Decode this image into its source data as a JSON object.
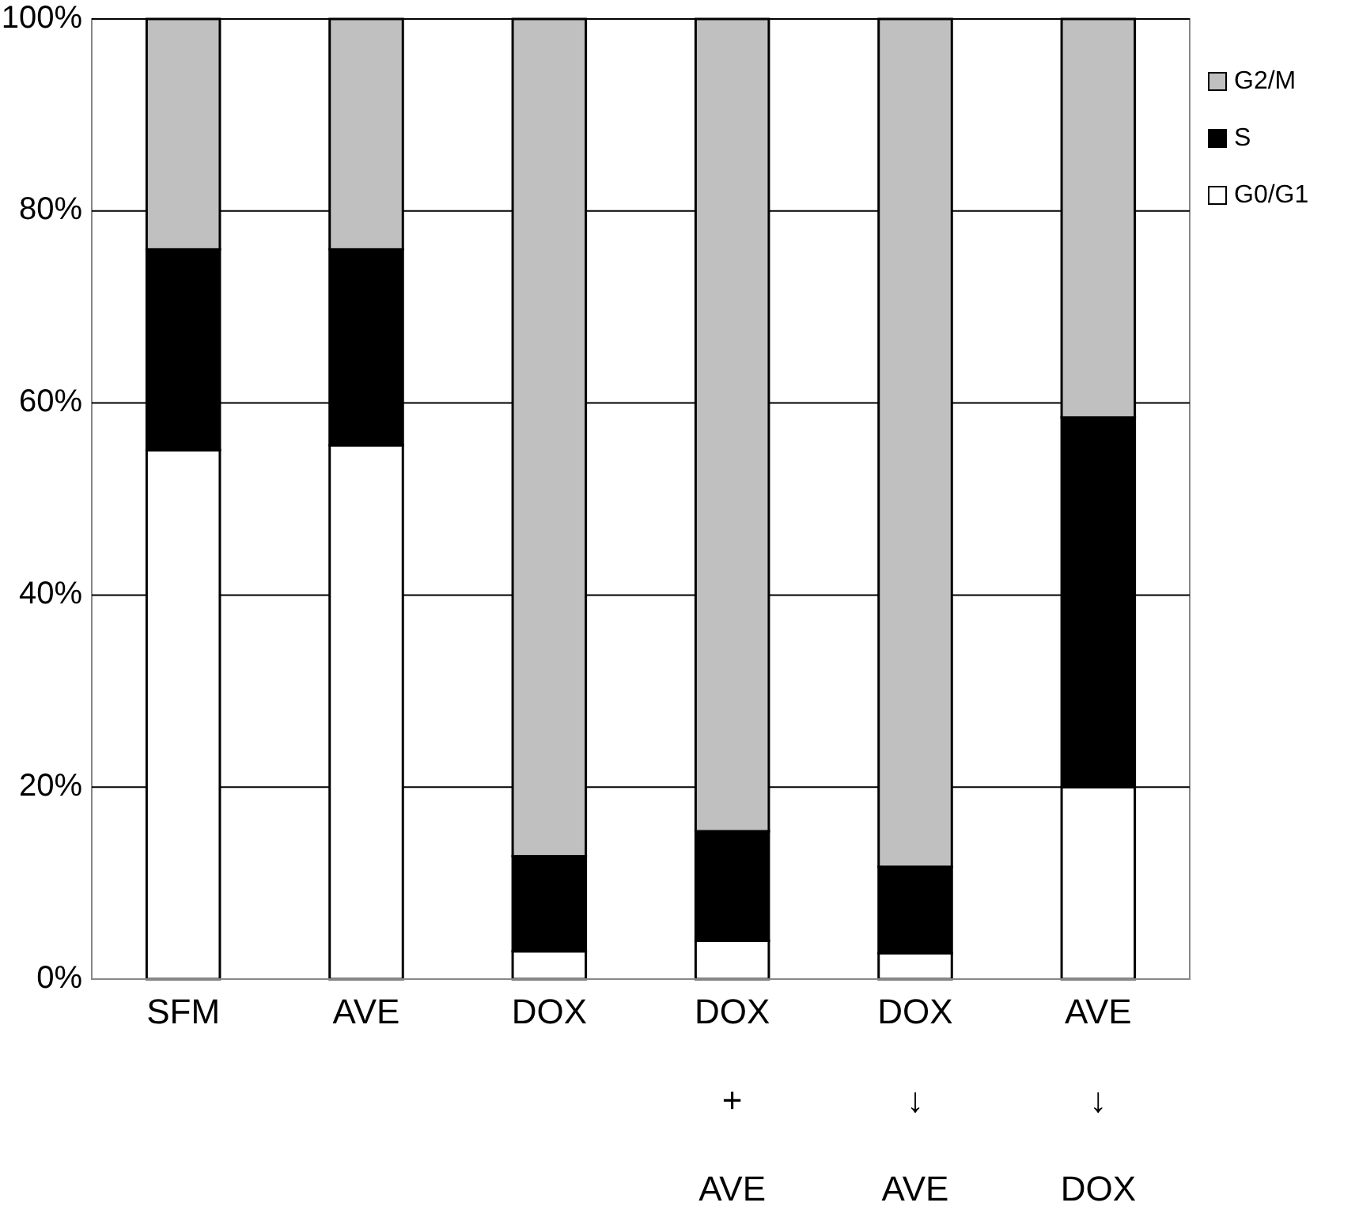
{
  "chart_data": {
    "type": "bar",
    "stacked": true,
    "categories": [
      "SFM",
      "AVE",
      "DOX",
      "DOX\n+\nAVE",
      "DOX\n↓\nAVE",
      "AVE\n↓\nDOX"
    ],
    "series": [
      {
        "name": "G0/G1",
        "color": "#ffffff",
        "values": [
          55.1,
          55.6,
          2.9,
          4.0,
          2.7,
          20.0
        ]
      },
      {
        "name": "S",
        "color": "#000000",
        "values": [
          20.9,
          20.4,
          9.9,
          11.4,
          9.0,
          38.5
        ]
      },
      {
        "name": "G2/M",
        "color": "#c0c0c0",
        "values": [
          24.0,
          24.0,
          87.2,
          84.6,
          88.3,
          41.5
        ]
      }
    ],
    "ylim": [
      0,
      100
    ],
    "yticks": [
      {
        "value": 0,
        "label": "0%"
      },
      {
        "value": 20,
        "label": "20%"
      },
      {
        "value": 40,
        "label": "40%"
      },
      {
        "value": 60,
        "label": "60%"
      },
      {
        "value": 80,
        "label": "80%"
      },
      {
        "value": 100,
        "label": "100%"
      }
    ],
    "grid": "y",
    "legend": "right"
  }
}
